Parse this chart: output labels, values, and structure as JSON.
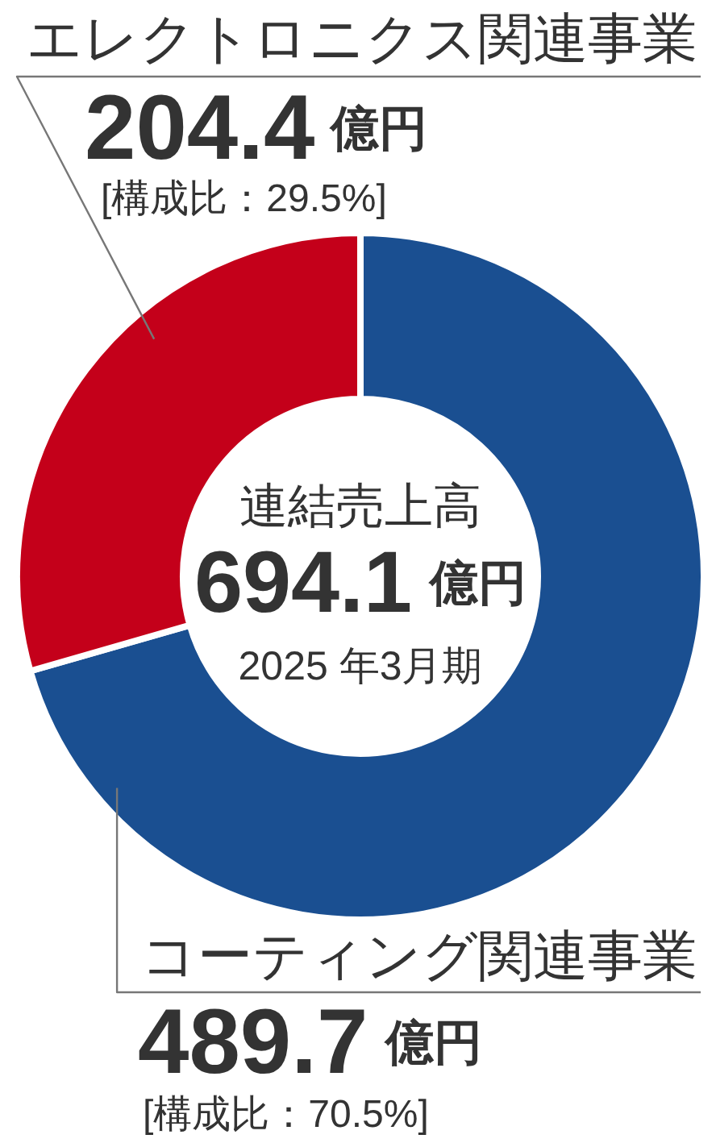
{
  "chart_data": {
    "type": "donut",
    "categories": [
      "コーティング関連事業",
      "エレクトロニクス関連事業"
    ],
    "values": [
      489.7,
      204.4
    ],
    "colors": [
      "#1a4f91",
      "#c4001a"
    ],
    "value_labels": [
      "489.7 億円\n[構成比：70.5%]",
      "204.4 億円\n[構成比：29.5%]"
    ],
    "annotations": [
      "連結売上高",
      "694.1 億円",
      "2025 年3月期"
    ]
  }
}
